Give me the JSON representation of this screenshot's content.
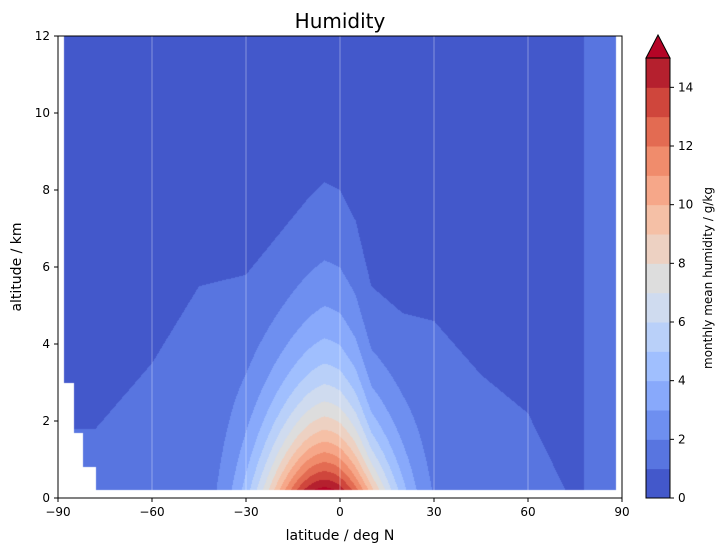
{
  "chart_data": {
    "type": "contourf",
    "title": "Humidity",
    "xlabel": "latitude  /  deg N",
    "ylabel": "altitude  /  km",
    "colorbar_label": "monthly mean humidity  /  g/kg",
    "xlim": [
      -90,
      90
    ],
    "ylim": [
      0,
      12
    ],
    "xticks": [
      -90,
      -60,
      -30,
      0,
      30,
      60,
      90
    ],
    "yticks": [
      0,
      2,
      4,
      6,
      8,
      10,
      12
    ],
    "colorbar_ticks": [
      0,
      2,
      4,
      6,
      8,
      10,
      12,
      14
    ],
    "colorbar_extend": "max",
    "levels": [
      0,
      1,
      2,
      3,
      4,
      5,
      6,
      7,
      8,
      9,
      10,
      11,
      12,
      13,
      14,
      15
    ],
    "colors": [
      "#4358cb",
      "#5875e0",
      "#6e8ff0",
      "#88a9fb",
      "#a0bffe",
      "#b9d0f9",
      "#cfdbef",
      "#dddddd",
      "#edd1c2",
      "#f5c0a6",
      "#f6a789",
      "#f08c6c",
      "#e36b52",
      "#cf463c",
      "#b5202e"
    ],
    "extend_color": "#b40426",
    "grid": "vertical lines at x ticks",
    "contour_profile": {
      "x": [
        -78,
        -60,
        -45,
        -30,
        -18,
        -10,
        -5,
        0,
        5,
        10,
        20,
        30,
        45,
        60,
        72
      ],
      "boundary_km": [
        1.8,
        3.5,
        5.5,
        5.8,
        7.0,
        7.8,
        8.2,
        8.0,
        7.2,
        5.5,
        4.8,
        4.6,
        3.2,
        2.2,
        0.2
      ]
    },
    "peak": {
      "lat": -5,
      "alt_km": 0,
      "value_gkg": 16.5
    }
  }
}
